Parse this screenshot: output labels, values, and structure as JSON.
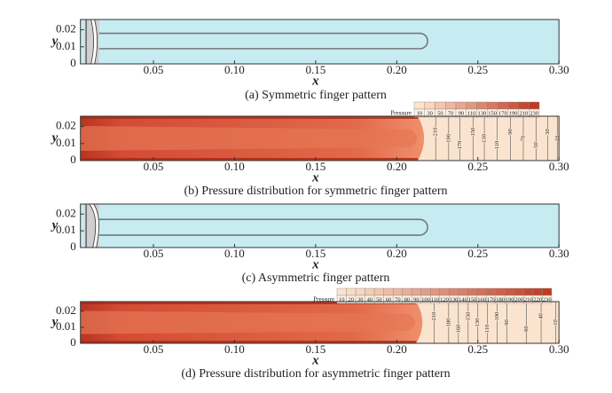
{
  "chart_data": [
    {
      "type": "interface",
      "caption": "(a) Symmetric finger pattern",
      "xlabel": "x",
      "ylabel": "y",
      "xlim": [
        0.005,
        0.3
      ],
      "ylim": [
        0,
        0.026
      ],
      "xticks": [
        0.05,
        {
          "value": 0.1,
          "label": "0.10"
        },
        0.15,
        {
          "value": 0.2,
          "label": "0.20"
        },
        0.25,
        {
          "value": 0.3,
          "label": "0.30"
        }
      ],
      "yticks": [
        0,
        0.01,
        0.02
      ],
      "finger": {
        "tip": 0.219,
        "center": 0.0134,
        "half_width": 0.0045
      }
    },
    {
      "type": "pressure",
      "caption": "(b) Pressure distribution for symmetric finger pattern",
      "xlabel": "x",
      "ylabel": "y",
      "xlim": [
        0.005,
        0.3
      ],
      "ylim": [
        0,
        0.026
      ],
      "xticks": [
        0.05,
        {
          "value": 0.1,
          "label": "0.10"
        },
        0.15,
        {
          "value": 0.2,
          "label": "0.20"
        },
        0.25,
        {
          "value": 0.3,
          "label": "0.30"
        }
      ],
      "yticks": [
        0,
        0.01,
        0.02
      ],
      "front": 0.213,
      "colorbar": {
        "label": "Pressure",
        "ticks": [
          10,
          30,
          50,
          70,
          90,
          110,
          130,
          150,
          170,
          190,
          210,
          230
        ]
      },
      "contours": {
        "levels": [
          210,
          190,
          170,
          150,
          130,
          110,
          90,
          70,
          50,
          30,
          10
        ],
        "x": [
          0.224,
          0.232,
          0.239,
          0.247,
          0.254,
          0.262,
          0.27,
          0.278,
          0.286,
          0.293,
          0.299
        ]
      }
    },
    {
      "type": "interface",
      "caption": "(c) Asymmetric finger pattern",
      "xlabel": "x",
      "ylabel": "y",
      "xlim": [
        0.005,
        0.3
      ],
      "ylim": [
        0,
        0.026
      ],
      "xticks": [
        0.05,
        {
          "value": 0.1,
          "label": "0.10"
        },
        0.15,
        {
          "value": 0.2,
          "label": "0.20"
        },
        0.25,
        {
          "value": 0.3,
          "label": "0.30"
        }
      ],
      "yticks": [
        0,
        0.01,
        0.02
      ],
      "finger": {
        "tip": 0.219,
        "center": 0.0121,
        "half_width": 0.0047
      }
    },
    {
      "type": "pressure",
      "caption": "(d) Pressure distribution for asymmetric finger pattern",
      "xlabel": "x",
      "ylabel": "y",
      "xlim": [
        0.005,
        0.3
      ],
      "ylim": [
        0,
        0.026
      ],
      "xticks": [
        0.05,
        {
          "value": 0.1,
          "label": "0.10"
        },
        0.15,
        {
          "value": 0.2,
          "label": "0.20"
        },
        0.25,
        {
          "value": 0.3,
          "label": "0.30"
        }
      ],
      "yticks": [
        0,
        0.01,
        0.02
      ],
      "front": 0.212,
      "colorbar": {
        "label": "Pressure",
        "ticks": [
          10,
          20,
          30,
          40,
          50,
          60,
          70,
          80,
          90,
          100,
          110,
          120,
          130,
          140,
          150,
          160,
          170,
          180,
          190,
          200,
          210,
          220,
          230
        ]
      },
      "contours": {
        "levels": [
          210,
          180,
          160,
          150,
          130,
          110,
          100,
          90,
          60,
          40,
          10
        ],
        "x": [
          0.223,
          0.232,
          0.238,
          0.244,
          0.25,
          0.256,
          0.262,
          0.268,
          0.28,
          0.289,
          0.298
        ]
      }
    }
  ]
}
